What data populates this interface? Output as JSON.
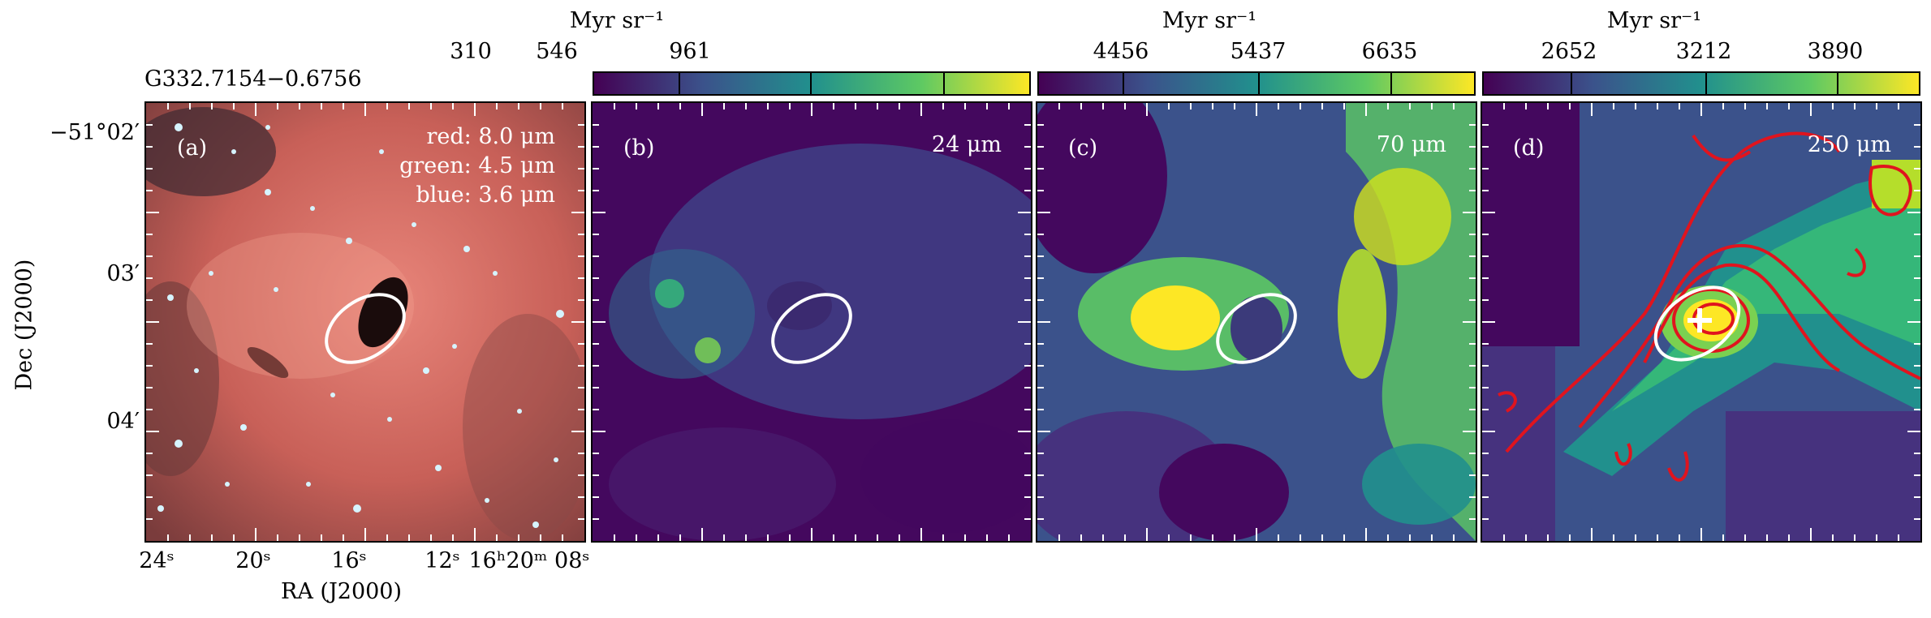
{
  "source_title": "G332.7154−0.6756",
  "axes": {
    "ylabel": "Dec (J2000)",
    "xlabel": "RA (J2000)",
    "yticks": [
      "−51°02′",
      "03′",
      "04′"
    ],
    "xticks": [
      "24ˢ",
      "20ˢ",
      "16ˢ",
      "12ˢ",
      "16ʰ20ᵐ 08ˢ"
    ]
  },
  "panels": [
    {
      "id": "a",
      "letter": "(a)",
      "legend": [
        "red: 8.0 μm",
        "green: 4.5 μm",
        "blue: 3.6 μm"
      ],
      "colormap": "rgb composite"
    },
    {
      "id": "b",
      "letter": "(b)",
      "band": "24 μm",
      "colorbar": {
        "unit": "Myr sr⁻¹",
        "ticks": [
          "310",
          "546",
          "961"
        ]
      }
    },
    {
      "id": "c",
      "letter": "(c)",
      "band": "70 μm",
      "colorbar": {
        "unit": "Myr sr⁻¹",
        "ticks": [
          "4456",
          "5437",
          "6635"
        ]
      }
    },
    {
      "id": "d",
      "letter": "(d)",
      "band": "250 μm",
      "colorbar": {
        "unit": "Myr sr⁻¹",
        "ticks": [
          "2652",
          "3212",
          "3890"
        ]
      },
      "contour_color": "#e0141e",
      "marker": "cross"
    }
  ],
  "colors": {
    "viridis": [
      "#440154",
      "#3b528b",
      "#21908d",
      "#5dc963",
      "#fde725"
    ],
    "ellipse": "#ffffff",
    "contour": "#e0141e"
  }
}
